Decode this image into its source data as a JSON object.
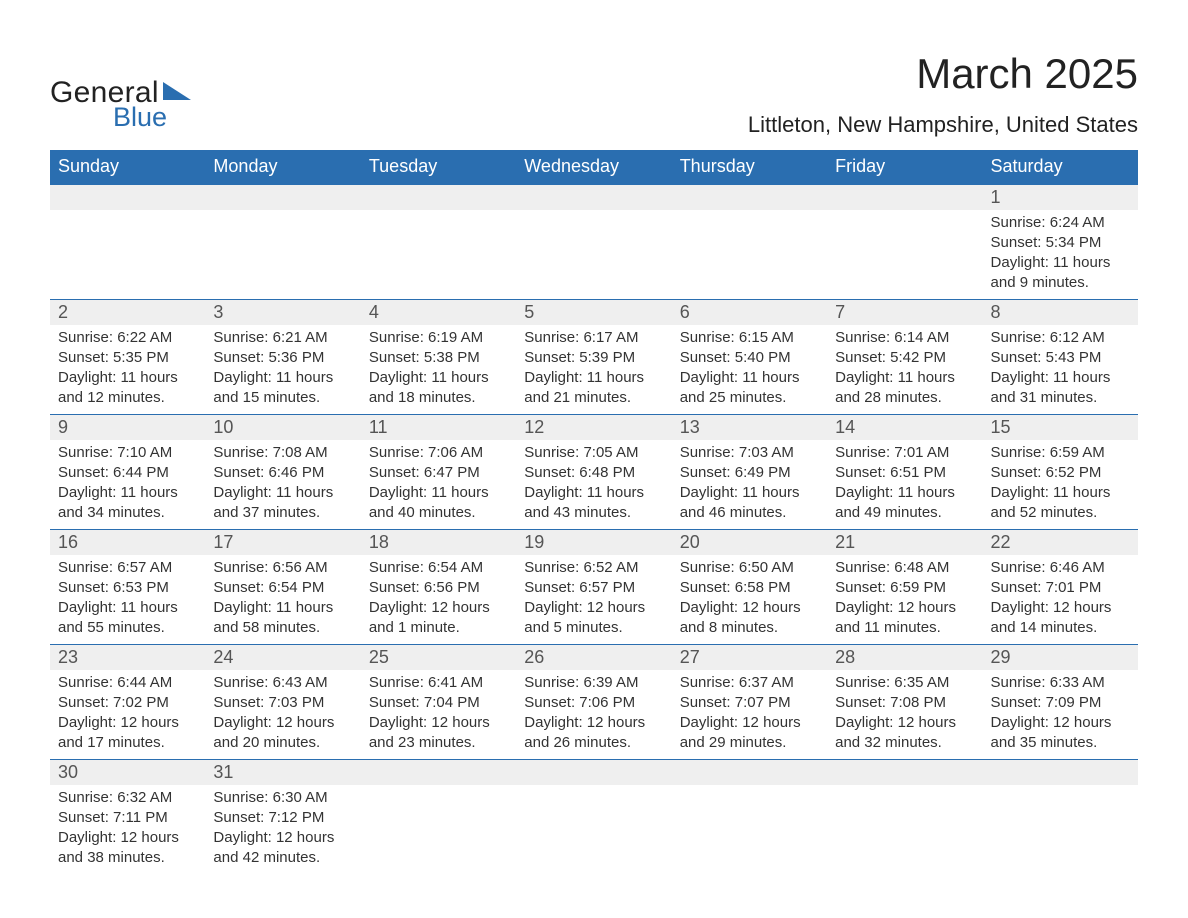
{
  "logo": {
    "text_general": "General",
    "text_blue": "Blue",
    "triangle_color": "#2a6eb0"
  },
  "header": {
    "month_title": "March 2025",
    "location": "Littleton, New Hampshire, United States"
  },
  "colors": {
    "header_bg": "#2a6eb0",
    "header_text": "#ffffff",
    "daynum_bg": "#efefef",
    "row_border": "#2a6eb0",
    "body_text": "#333333"
  },
  "weekdays": [
    "Sunday",
    "Monday",
    "Tuesday",
    "Wednesday",
    "Thursday",
    "Friday",
    "Saturday"
  ],
  "weeks": [
    [
      null,
      null,
      null,
      null,
      null,
      null,
      {
        "day": "1",
        "sunrise": "Sunrise: 6:24 AM",
        "sunset": "Sunset: 5:34 PM",
        "daylight1": "Daylight: 11 hours",
        "daylight2": "and 9 minutes."
      }
    ],
    [
      {
        "day": "2",
        "sunrise": "Sunrise: 6:22 AM",
        "sunset": "Sunset: 5:35 PM",
        "daylight1": "Daylight: 11 hours",
        "daylight2": "and 12 minutes."
      },
      {
        "day": "3",
        "sunrise": "Sunrise: 6:21 AM",
        "sunset": "Sunset: 5:36 PM",
        "daylight1": "Daylight: 11 hours",
        "daylight2": "and 15 minutes."
      },
      {
        "day": "4",
        "sunrise": "Sunrise: 6:19 AM",
        "sunset": "Sunset: 5:38 PM",
        "daylight1": "Daylight: 11 hours",
        "daylight2": "and 18 minutes."
      },
      {
        "day": "5",
        "sunrise": "Sunrise: 6:17 AM",
        "sunset": "Sunset: 5:39 PM",
        "daylight1": "Daylight: 11 hours",
        "daylight2": "and 21 minutes."
      },
      {
        "day": "6",
        "sunrise": "Sunrise: 6:15 AM",
        "sunset": "Sunset: 5:40 PM",
        "daylight1": "Daylight: 11 hours",
        "daylight2": "and 25 minutes."
      },
      {
        "day": "7",
        "sunrise": "Sunrise: 6:14 AM",
        "sunset": "Sunset: 5:42 PM",
        "daylight1": "Daylight: 11 hours",
        "daylight2": "and 28 minutes."
      },
      {
        "day": "8",
        "sunrise": "Sunrise: 6:12 AM",
        "sunset": "Sunset: 5:43 PM",
        "daylight1": "Daylight: 11 hours",
        "daylight2": "and 31 minutes."
      }
    ],
    [
      {
        "day": "9",
        "sunrise": "Sunrise: 7:10 AM",
        "sunset": "Sunset: 6:44 PM",
        "daylight1": "Daylight: 11 hours",
        "daylight2": "and 34 minutes."
      },
      {
        "day": "10",
        "sunrise": "Sunrise: 7:08 AM",
        "sunset": "Sunset: 6:46 PM",
        "daylight1": "Daylight: 11 hours",
        "daylight2": "and 37 minutes."
      },
      {
        "day": "11",
        "sunrise": "Sunrise: 7:06 AM",
        "sunset": "Sunset: 6:47 PM",
        "daylight1": "Daylight: 11 hours",
        "daylight2": "and 40 minutes."
      },
      {
        "day": "12",
        "sunrise": "Sunrise: 7:05 AM",
        "sunset": "Sunset: 6:48 PM",
        "daylight1": "Daylight: 11 hours",
        "daylight2": "and 43 minutes."
      },
      {
        "day": "13",
        "sunrise": "Sunrise: 7:03 AM",
        "sunset": "Sunset: 6:49 PM",
        "daylight1": "Daylight: 11 hours",
        "daylight2": "and 46 minutes."
      },
      {
        "day": "14",
        "sunrise": "Sunrise: 7:01 AM",
        "sunset": "Sunset: 6:51 PM",
        "daylight1": "Daylight: 11 hours",
        "daylight2": "and 49 minutes."
      },
      {
        "day": "15",
        "sunrise": "Sunrise: 6:59 AM",
        "sunset": "Sunset: 6:52 PM",
        "daylight1": "Daylight: 11 hours",
        "daylight2": "and 52 minutes."
      }
    ],
    [
      {
        "day": "16",
        "sunrise": "Sunrise: 6:57 AM",
        "sunset": "Sunset: 6:53 PM",
        "daylight1": "Daylight: 11 hours",
        "daylight2": "and 55 minutes."
      },
      {
        "day": "17",
        "sunrise": "Sunrise: 6:56 AM",
        "sunset": "Sunset: 6:54 PM",
        "daylight1": "Daylight: 11 hours",
        "daylight2": "and 58 minutes."
      },
      {
        "day": "18",
        "sunrise": "Sunrise: 6:54 AM",
        "sunset": "Sunset: 6:56 PM",
        "daylight1": "Daylight: 12 hours",
        "daylight2": "and 1 minute."
      },
      {
        "day": "19",
        "sunrise": "Sunrise: 6:52 AM",
        "sunset": "Sunset: 6:57 PM",
        "daylight1": "Daylight: 12 hours",
        "daylight2": "and 5 minutes."
      },
      {
        "day": "20",
        "sunrise": "Sunrise: 6:50 AM",
        "sunset": "Sunset: 6:58 PM",
        "daylight1": "Daylight: 12 hours",
        "daylight2": "and 8 minutes."
      },
      {
        "day": "21",
        "sunrise": "Sunrise: 6:48 AM",
        "sunset": "Sunset: 6:59 PM",
        "daylight1": "Daylight: 12 hours",
        "daylight2": "and 11 minutes."
      },
      {
        "day": "22",
        "sunrise": "Sunrise: 6:46 AM",
        "sunset": "Sunset: 7:01 PM",
        "daylight1": "Daylight: 12 hours",
        "daylight2": "and 14 minutes."
      }
    ],
    [
      {
        "day": "23",
        "sunrise": "Sunrise: 6:44 AM",
        "sunset": "Sunset: 7:02 PM",
        "daylight1": "Daylight: 12 hours",
        "daylight2": "and 17 minutes."
      },
      {
        "day": "24",
        "sunrise": "Sunrise: 6:43 AM",
        "sunset": "Sunset: 7:03 PM",
        "daylight1": "Daylight: 12 hours",
        "daylight2": "and 20 minutes."
      },
      {
        "day": "25",
        "sunrise": "Sunrise: 6:41 AM",
        "sunset": "Sunset: 7:04 PM",
        "daylight1": "Daylight: 12 hours",
        "daylight2": "and 23 minutes."
      },
      {
        "day": "26",
        "sunrise": "Sunrise: 6:39 AM",
        "sunset": "Sunset: 7:06 PM",
        "daylight1": "Daylight: 12 hours",
        "daylight2": "and 26 minutes."
      },
      {
        "day": "27",
        "sunrise": "Sunrise: 6:37 AM",
        "sunset": "Sunset: 7:07 PM",
        "daylight1": "Daylight: 12 hours",
        "daylight2": "and 29 minutes."
      },
      {
        "day": "28",
        "sunrise": "Sunrise: 6:35 AM",
        "sunset": "Sunset: 7:08 PM",
        "daylight1": "Daylight: 12 hours",
        "daylight2": "and 32 minutes."
      },
      {
        "day": "29",
        "sunrise": "Sunrise: 6:33 AM",
        "sunset": "Sunset: 7:09 PM",
        "daylight1": "Daylight: 12 hours",
        "daylight2": "and 35 minutes."
      }
    ],
    [
      {
        "day": "30",
        "sunrise": "Sunrise: 6:32 AM",
        "sunset": "Sunset: 7:11 PM",
        "daylight1": "Daylight: 12 hours",
        "daylight2": "and 38 minutes."
      },
      {
        "day": "31",
        "sunrise": "Sunrise: 6:30 AM",
        "sunset": "Sunset: 7:12 PM",
        "daylight1": "Daylight: 12 hours",
        "daylight2": "and 42 minutes."
      },
      null,
      null,
      null,
      null,
      null
    ]
  ]
}
